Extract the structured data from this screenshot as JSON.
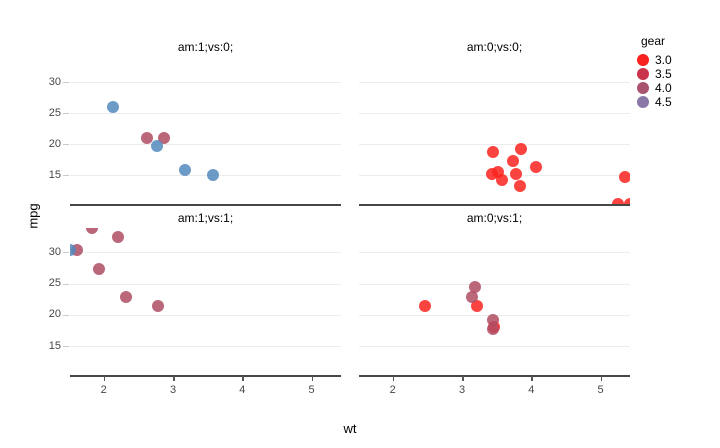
{
  "chart_data": {
    "type": "scatter",
    "title": "",
    "xlabel": "wt",
    "ylabel": "mpg",
    "x_ticks": [
      2,
      3,
      4,
      5
    ],
    "y_ticks": [
      15,
      20,
      25,
      30
    ],
    "x_domain": [
      1.513,
      5.424
    ],
    "y_domain": [
      10.4,
      33.9
    ],
    "grid": "horizontal gridlines only",
    "point_format": [
      "wt",
      "mpg",
      "gear"
    ],
    "color_scale": {
      "3": "#FA231F",
      "4": "#AF4C63",
      "5": "#5489BD"
    },
    "legend": {
      "title": "gear",
      "position": "top-right",
      "entries": [
        {
          "label": "3.0",
          "color": "#F8231F"
        },
        {
          "label": "3.5",
          "color": "#C9344A"
        },
        {
          "label": "4.0",
          "color": "#A9536F"
        },
        {
          "label": "4.5",
          "color": "#8B77A7"
        }
      ]
    },
    "facets": [
      {
        "label": "am:1;vs:0;",
        "row": 0,
        "col": 0,
        "points": [
          [
            2.62,
            21.0,
            4
          ],
          [
            2.875,
            21.0,
            4
          ],
          [
            2.14,
            26.0,
            5
          ],
          [
            3.17,
            15.8,
            5
          ],
          [
            2.77,
            19.7,
            5
          ],
          [
            3.57,
            15.0,
            5
          ]
        ]
      },
      {
        "label": "am:0;vs:0;",
        "row": 0,
        "col": 1,
        "points": [
          [
            3.44,
            18.7,
            3
          ],
          [
            3.57,
            14.3,
            3
          ],
          [
            4.07,
            16.4,
            3
          ],
          [
            3.73,
            17.3,
            3
          ],
          [
            3.78,
            15.2,
            3
          ],
          [
            5.25,
            10.4,
            3
          ],
          [
            5.424,
            10.4,
            3
          ],
          [
            5.345,
            14.7,
            3
          ],
          [
            3.52,
            15.5,
            3
          ],
          [
            3.435,
            15.2,
            3
          ],
          [
            3.84,
            13.3,
            3
          ],
          [
            3.845,
            19.2,
            3
          ]
        ]
      },
      {
        "label": "am:1;vs:1;",
        "row": 1,
        "col": 0,
        "points": [
          [
            2.32,
            22.8,
            4
          ],
          [
            2.2,
            32.4,
            4
          ],
          [
            1.615,
            30.4,
            4
          ],
          [
            1.835,
            33.9,
            4
          ],
          [
            1.935,
            27.3,
            4
          ],
          [
            1.513,
            30.4,
            5
          ],
          [
            2.78,
            21.4,
            4
          ]
        ]
      },
      {
        "label": "am:0;vs:1;",
        "row": 1,
        "col": 1,
        "points": [
          [
            3.215,
            21.4,
            3
          ],
          [
            3.46,
            18.1,
            3
          ],
          [
            3.19,
            24.4,
            4
          ],
          [
            3.15,
            22.8,
            4
          ],
          [
            3.44,
            19.2,
            4
          ],
          [
            3.44,
            17.8,
            4
          ],
          [
            2.465,
            21.5,
            3
          ]
        ]
      }
    ]
  }
}
